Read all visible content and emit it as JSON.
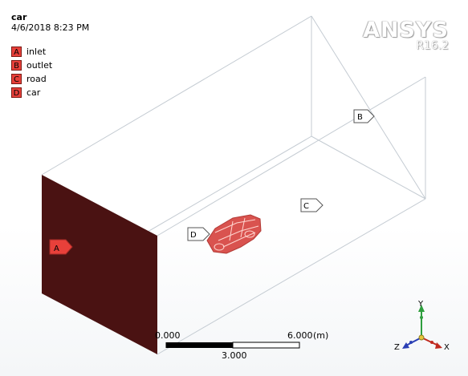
{
  "header": {
    "model_name": "car",
    "timestamp": "4/6/2018 8:23 PM"
  },
  "legend": {
    "items": [
      {
        "key": "A",
        "label": "inlet"
      },
      {
        "key": "B",
        "label": "outlet"
      },
      {
        "key": "C",
        "label": "road"
      },
      {
        "key": "D",
        "label": "car"
      }
    ],
    "key_color": "#e8403a"
  },
  "logo": {
    "word": "ANSYS",
    "version": "R16.2"
  },
  "viewport": {
    "tags": {
      "inlet": "A",
      "outlet": "B",
      "road": "C",
      "car": "D"
    },
    "inlet_face_color": "#4a1212",
    "car_color": "#d9534f"
  },
  "scale_bar": {
    "left_value": "0.000",
    "right_value": "6.000",
    "unit": "(m)",
    "mid_value": "3.000"
  },
  "triad": {
    "x_label": "X",
    "y_label": "Y",
    "z_label": "Z"
  }
}
